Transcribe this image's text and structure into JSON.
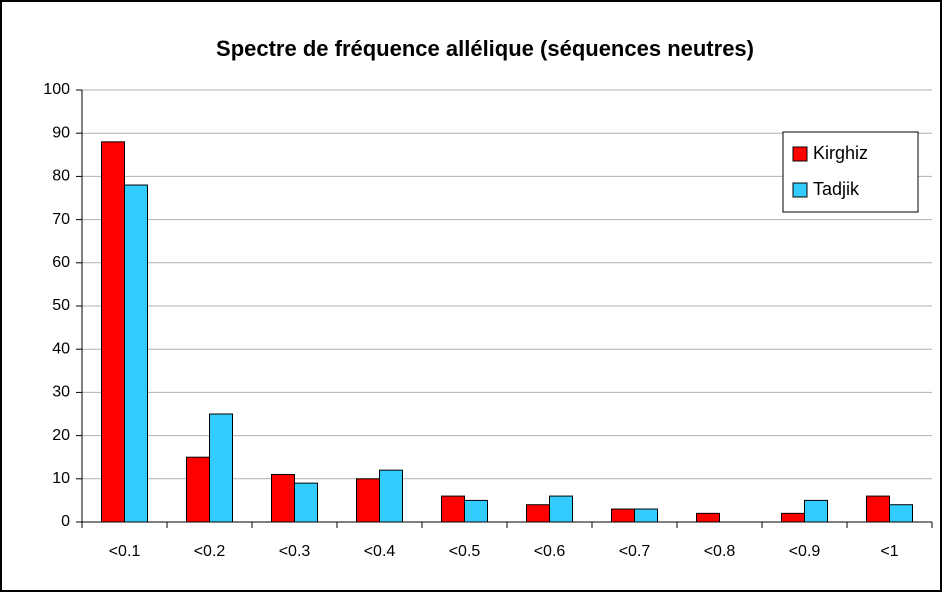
{
  "chart_data": {
    "type": "bar",
    "title": "Spectre de fréquence allélique (séquences neutres)",
    "categories": [
      "<0.1",
      "<0.2",
      "<0.3",
      "<0.4",
      "<0.5",
      "<0.6",
      "<0.7",
      "<0.8",
      "<0.9",
      "<1"
    ],
    "series": [
      {
        "name": "Kirghiz",
        "color": "#ff0000",
        "values": [
          88,
          15,
          11,
          10,
          6,
          4,
          3,
          2,
          2,
          6
        ]
      },
      {
        "name": "Tadjik",
        "color": "#33ccff",
        "values": [
          78,
          25,
          9,
          12,
          5,
          6,
          3,
          0,
          5,
          4
        ]
      }
    ],
    "ylim": [
      0,
      100
    ],
    "yticks": [
      0,
      10,
      20,
      30,
      40,
      50,
      60,
      70,
      80,
      90,
      100
    ],
    "grid": true,
    "legend": "upper right"
  }
}
